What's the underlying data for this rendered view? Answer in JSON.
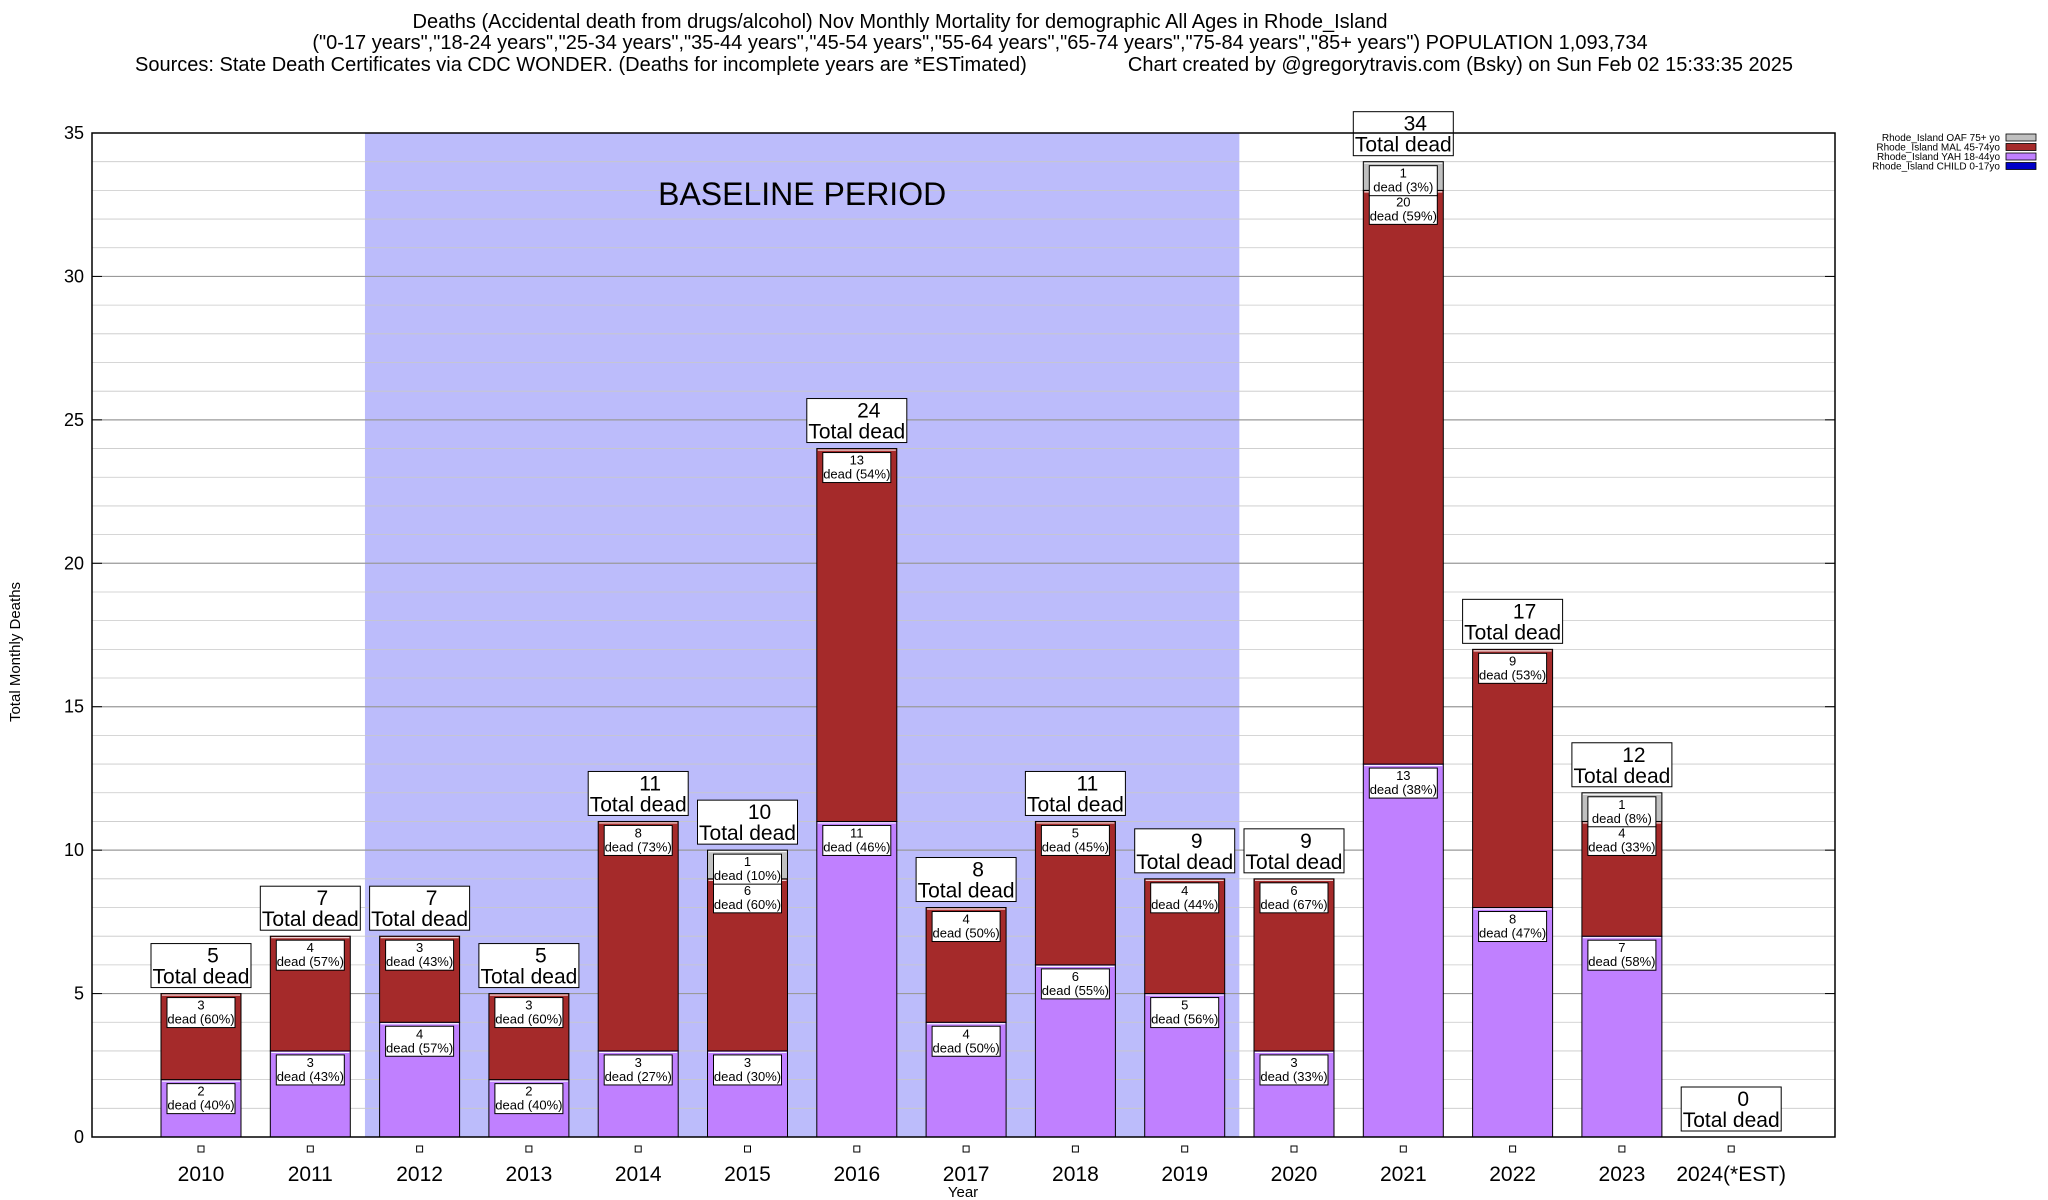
{
  "chart_data": {
    "type": "bar",
    "title_lines": [
      "Deaths (Accidental death from drugs/alcohol) Nov Monthly Mortality for demographic All Ages in Rhode_Island",
      "(\"0-17 years\",\"18-24 years\",\"25-34 years\",\"35-44 years\",\"45-54 years\",\"55-64 years\",\"65-74 years\",\"75-84 years\",\"85+ years\") POPULATION 1,093,734"
    ],
    "sources_text": "Sources: State Death Certificates via CDC WONDER. (Deaths for incomplete years are *ESTimated)",
    "credit_text": "Chart created by @gregorytravis.com (Bsky) on Sun Feb 02 15:33:35 2025",
    "xlabel": "Year",
    "ylabel": "Total Monthly Deaths",
    "ylim": [
      0,
      35
    ],
    "yticks": [
      0,
      5,
      10,
      15,
      20,
      25,
      30,
      35
    ],
    "grid": true,
    "stacked": true,
    "baseline_period": {
      "label": "BASELINE PERIOD",
      "from_category": "2012",
      "to_category": "2019",
      "color": "#bcbcfb"
    },
    "categories": [
      "2010",
      "2011",
      "2012",
      "2013",
      "2014",
      "2015",
      "2016",
      "2017",
      "2018",
      "2019",
      "2020",
      "2021",
      "2022",
      "2023",
      "2024(*EST)"
    ],
    "series": [
      {
        "name": "Rhode_Island CHILD 0-17yo",
        "color": "#0000c8",
        "values": [
          0,
          0,
          0,
          0,
          0,
          0,
          0,
          0,
          0,
          0,
          0,
          0,
          0,
          0,
          0
        ],
        "labels": [
          "",
          "",
          "",
          "",
          "",
          "",
          "",
          "",
          "",
          "",
          "",
          "",
          "",
          "",
          ""
        ]
      },
      {
        "name": "Rhode_Island YAH 18-44yo",
        "color": "#c080ff",
        "values": [
          2,
          3,
          4,
          2,
          3,
          3,
          11,
          4,
          6,
          5,
          3,
          13,
          8,
          7,
          0
        ],
        "labels": [
          "dead (40%)",
          "dead (43%)",
          "dead (57%)",
          "dead (40%)",
          "dead (27%)",
          "dead (30%)",
          "dead (46%)",
          "dead (50%)",
          "dead (55%)",
          "dead (56%)",
          "dead (33%)",
          "dead (38%)",
          "dead (47%)",
          "dead (58%)",
          ""
        ]
      },
      {
        "name": "Rhode_Island MAL 45-74yo",
        "color": "#a52a2a",
        "values": [
          3,
          4,
          3,
          3,
          8,
          6,
          13,
          4,
          5,
          4,
          6,
          20,
          9,
          4,
          0
        ],
        "labels": [
          "dead (60%)",
          "dead (57%)",
          "dead (43%)",
          "dead (60%)",
          "dead (73%)",
          "dead (60%)",
          "dead (54%)",
          "dead (50%)",
          "dead (45%)",
          "dead (44%)",
          "dead (67%)",
          "dead (59%)",
          "dead (53%)",
          "dead (33%)",
          ""
        ]
      },
      {
        "name": "Rhode_Island OAF 75+ yo",
        "color": "#c0c0c0",
        "values": [
          0,
          0,
          0,
          0,
          0,
          1,
          0,
          0,
          0,
          0,
          0,
          1,
          0,
          1,
          0
        ],
        "labels": [
          "",
          "",
          "",
          "",
          "",
          "dead (10%)",
          "",
          "",
          "",
          "",
          "",
          "dead (3%)",
          "",
          "dead (8%)",
          ""
        ]
      }
    ],
    "totals": [
      5,
      7,
      7,
      5,
      11,
      10,
      24,
      8,
      11,
      9,
      9,
      34,
      17,
      12,
      0
    ],
    "total_suffix": "Total dead",
    "legend_position": "top-right",
    "legend_order": [
      "Rhode_Island OAF 75+ yo",
      "Rhode_Island MAL 45-74yo",
      "Rhode_Island YAH 18-44yo",
      "Rhode_Island CHILD 0-17yo"
    ]
  }
}
